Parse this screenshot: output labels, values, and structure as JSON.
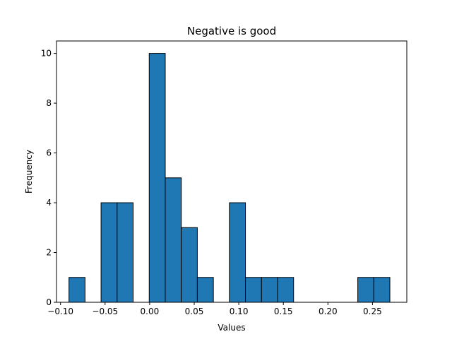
{
  "chart_data": {
    "type": "bar",
    "subtype": "histogram",
    "title": "Negative is good",
    "xlabel": "Values",
    "ylabel": "Frequency",
    "xlim": [
      -0.1045,
      0.2885
    ],
    "ylim": [
      0,
      10.5
    ],
    "x_ticks": [
      -0.1,
      -0.05,
      0.0,
      0.05,
      0.1,
      0.15,
      0.2,
      0.25
    ],
    "x_tick_labels": [
      "−0.10",
      "−0.05",
      "0.00",
      "0.05",
      "0.10",
      "0.15",
      "0.20",
      "0.25"
    ],
    "y_ticks": [
      0,
      2,
      4,
      6,
      8,
      10
    ],
    "y_tick_labels": [
      "0",
      "2",
      "4",
      "6",
      "8",
      "10"
    ],
    "bin_edges": [
      -0.0905,
      -0.0725,
      -0.0545,
      -0.0365,
      -0.0185,
      -0.0005,
      0.0175,
      0.0355,
      0.0535,
      0.0715,
      0.0895,
      0.1075,
      0.1255,
      0.1435,
      0.1615,
      0.1795,
      0.1975,
      0.2155,
      0.2335,
      0.2515,
      0.2695
    ],
    "counts": [
      1,
      0,
      4,
      4,
      0,
      10,
      5,
      3,
      1,
      0,
      4,
      1,
      1,
      1,
      0,
      0,
      0,
      0,
      1,
      1
    ],
    "bar_color": "#1f77b4",
    "edge_color": "#000000",
    "grid": false
  }
}
